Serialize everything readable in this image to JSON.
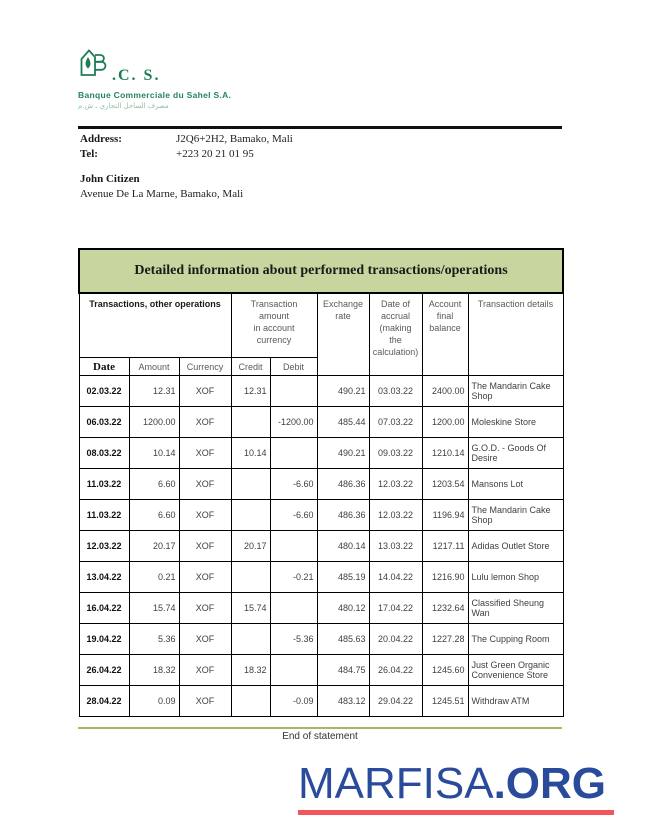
{
  "bank": {
    "logo_letters": ".C. S.",
    "name": "Banque Commerciale du Sahel S.A.",
    "arabic_line": "مصرف الساحل التجاري ـ ش.م"
  },
  "contact": {
    "address_label": "Address:",
    "address_value": "J2Q6+2H2, Bamako, Mali",
    "tel_label": "Tel:",
    "tel_value": "+223 20 21 01 95"
  },
  "customer": {
    "name": "John Citizen",
    "address": "Avenue De La Marne, Bamako, Mali"
  },
  "table": {
    "title": "Detailed information about performed transactions/operations",
    "group_headers": {
      "transactions": "Transactions, other operations",
      "amount_currency": "Transaction\namount\nin account\ncurrency",
      "exchange_rate": "Exchange\nrate",
      "accrual": "Date of\naccrual\n(making\nthe\ncalculation)",
      "balance": "Account\nfinal\nbalance",
      "details": "Transaction details"
    },
    "sub_headers": {
      "date": "Date",
      "amount": "Amount",
      "currency": "Currency",
      "credit": "Credit",
      "debit": "Debit"
    },
    "rows": [
      {
        "date": "02.03.22",
        "amount": "12.31",
        "currency": "XOF",
        "credit": "12.31",
        "debit": "",
        "rate": "490.21",
        "accrual": "03.03.22",
        "balance": "2400.00",
        "details": "The Mandarin Cake Shop"
      },
      {
        "date": "06.03.22",
        "amount": "1200.00",
        "currency": "XOF",
        "credit": "",
        "debit": "-1200.00",
        "rate": "485.44",
        "accrual": "07.03.22",
        "balance": "1200.00",
        "details": "Moleskine Store"
      },
      {
        "date": "08.03.22",
        "amount": "10.14",
        "currency": "XOF",
        "credit": "10.14",
        "debit": "",
        "rate": "490.21",
        "accrual": "09.03.22",
        "balance": "1210.14",
        "details": "G.O.D. - Goods Of Desire"
      },
      {
        "date": "11.03.22",
        "amount": "6.60",
        "currency": "XOF",
        "credit": "",
        "debit": "-6.60",
        "rate": "486.36",
        "accrual": "12.03.22",
        "balance": "1203.54",
        "details": "Mansons Lot"
      },
      {
        "date": "11.03.22",
        "amount": "6.60",
        "currency": "XOF",
        "credit": "",
        "debit": "-6.60",
        "rate": "486.36",
        "accrual": "12.03.22",
        "balance": "1196.94",
        "details": "The Mandarin Cake Shop"
      },
      {
        "date": "12.03.22",
        "amount": "20.17",
        "currency": "XOF",
        "credit": "20.17",
        "debit": "",
        "rate": "480.14",
        "accrual": "13.03.22",
        "balance": "1217.11",
        "details": "Adidas Outlet Store"
      },
      {
        "date": "13.04.22",
        "amount": "0.21",
        "currency": "XOF",
        "credit": "",
        "debit": "-0.21",
        "rate": "485.19",
        "accrual": "14.04.22",
        "balance": "1216.90",
        "details": "Lulu lemon Shop"
      },
      {
        "date": "16.04.22",
        "amount": "15.74",
        "currency": "XOF",
        "credit": "15.74",
        "debit": "",
        "rate": "480.12",
        "accrual": "17.04.22",
        "balance": "1232.64",
        "details": "Classified Sheung Wan"
      },
      {
        "date": "19.04.22",
        "amount": "5.36",
        "currency": "XOF",
        "credit": "",
        "debit": "-5.36",
        "rate": "485.63",
        "accrual": "20.04.22",
        "balance": "1227.28",
        "details": "The Cupping Room"
      },
      {
        "date": "26.04.22",
        "amount": "18.32",
        "currency": "XOF",
        "credit": "18.32",
        "debit": "",
        "rate": "484.75",
        "accrual": "26.04.22",
        "balance": "1245.60",
        "details": "Just Green Organic Convenience Store"
      },
      {
        "date": "28.04.22",
        "amount": "0.09",
        "currency": "XOF",
        "credit": "",
        "debit": "-0.09",
        "rate": "483.12",
        "accrual": "29.04.22",
        "balance": "1245.51",
        "details": "Withdraw ATM"
      }
    ]
  },
  "footer": {
    "end_text": "End of statement",
    "brand_main": "MARFISA",
    "brand_suffix": ".ORG"
  },
  "colors": {
    "logo_green": "#1e7d52",
    "title_bar_green": "#c6d69e",
    "olive_rule": "#a9b860",
    "brand_blue": "#2a4b9b",
    "brand_red": "#f2565a"
  }
}
